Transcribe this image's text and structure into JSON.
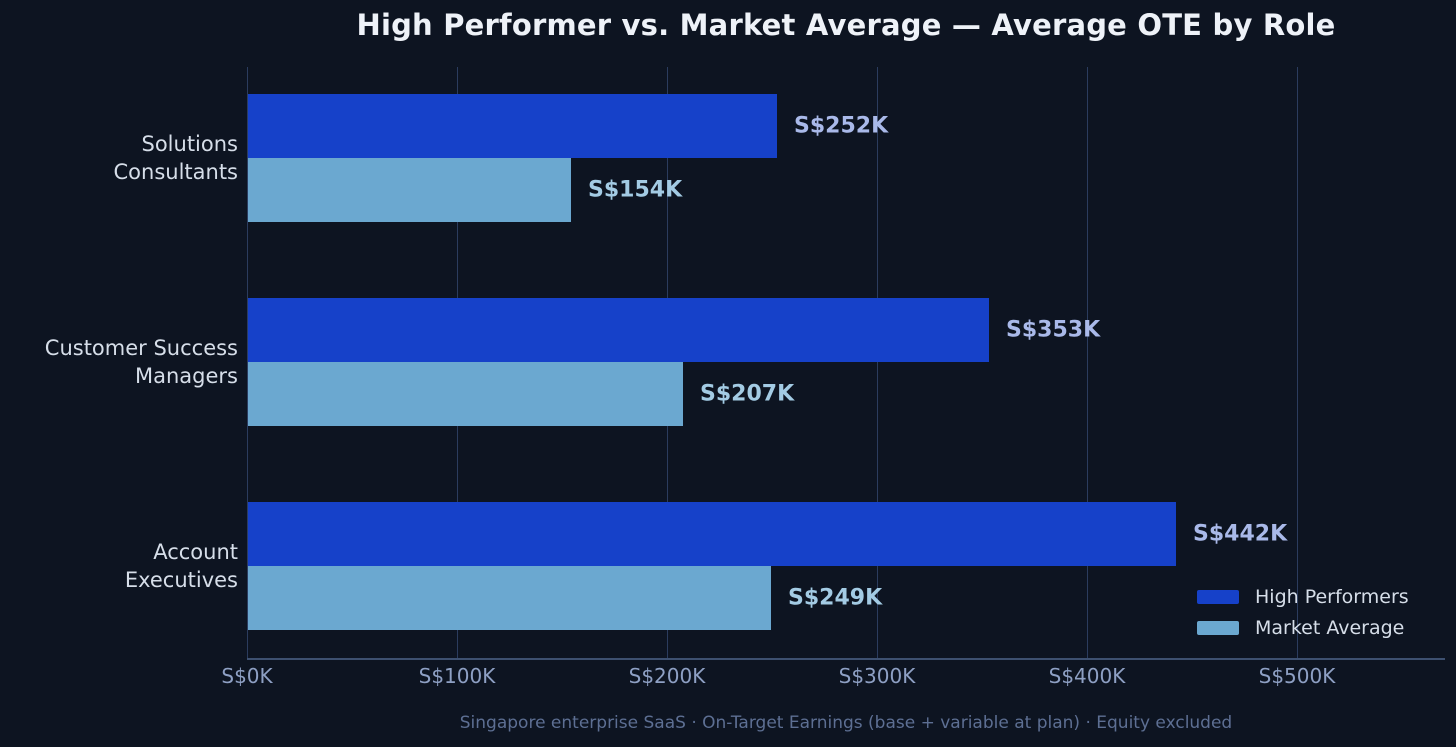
{
  "colors": {
    "background": "#0d1421",
    "title_text": "#eef2f8",
    "category_text": "#d6dee9",
    "tick_text": "#8ea0c4",
    "footnote_text": "#5d6f93",
    "gridline": "#2b3c5e",
    "axis_line": "#3d5070",
    "high_performers_bar": "#1641c9",
    "market_average_bar": "#6ba8d0",
    "high_performers_value_label": "#a9b9e9",
    "market_average_value_label": "#a3cbe4"
  },
  "chart_data": {
    "type": "bar",
    "orientation": "horizontal",
    "title": "High Performer vs. Market Average — Average OTE by Role",
    "categories": [
      "Solutions Consultants",
      "Customer Success Managers",
      "Account Executives"
    ],
    "category_lines": [
      [
        "Solutions",
        "Consultants"
      ],
      [
        "Customer Success",
        "Managers"
      ],
      [
        "Account",
        "Executives"
      ]
    ],
    "series": [
      {
        "name": "High Performers",
        "values_k_sgd": [
          252,
          353,
          442
        ],
        "value_labels": [
          "S$252K",
          "S$353K",
          "S$442K"
        ],
        "color": "#1641c9",
        "value_label_color": "#a9b9e9"
      },
      {
        "name": "Market Average",
        "values_k_sgd": [
          154,
          207,
          249
        ],
        "value_labels": [
          "S$154K",
          "S$207K",
          "S$249K"
        ],
        "color": "#6ba8d0",
        "value_label_color": "#a3cbe4"
      }
    ],
    "x_axis": {
      "tick_labels": [
        "S$0K",
        "S$100K",
        "S$200K",
        "S$300K",
        "S$400K",
        "S$500K"
      ],
      "tick_values_k": [
        0,
        100,
        200,
        300,
        400,
        500
      ],
      "range_k": [
        0,
        570
      ]
    },
    "grid": {
      "vertical": true,
      "horizontal": false
    },
    "legend": {
      "position": "lower-right",
      "entries": [
        "High Performers",
        "Market Average"
      ]
    },
    "footnote": "Singapore enterprise SaaS · On-Target Earnings (base + variable at plan) · Equity excluded"
  }
}
